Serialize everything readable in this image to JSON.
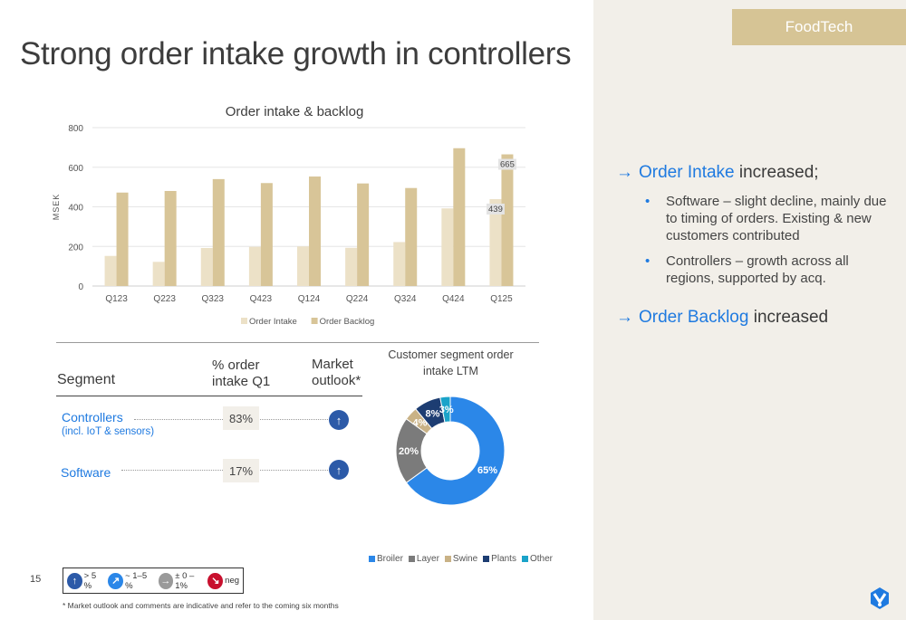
{
  "slide": {
    "tag": "FoodTech",
    "title": "Strong order intake growth in controllers",
    "page_number": "15",
    "footnote": "* Market outlook and comments are indicative and refer to the coming six months"
  },
  "chart_data": [
    {
      "type": "bar",
      "title": "Order intake & backlog",
      "ylabel": "MSEK",
      "xlabel": "",
      "ylim": [
        0,
        800
      ],
      "yticks": [
        0,
        200,
        400,
        600,
        800
      ],
      "categories": [
        "Q123",
        "Q223",
        "Q323",
        "Q423",
        "Q124",
        "Q224",
        "Q324",
        "Q424",
        "Q125"
      ],
      "series": [
        {
          "name": "Order Intake",
          "color": "#ece1c7",
          "values": [
            152,
            122,
            192,
            198,
            200,
            193,
            222,
            392,
            439
          ]
        },
        {
          "name": "Order Backlog",
          "color": "#d8c598",
          "values": [
            472,
            480,
            540,
            520,
            553,
            518,
            495,
            696,
            665
          ]
        }
      ],
      "data_labels": [
        {
          "series": "Order Intake",
          "category": "Q125",
          "text": "439"
        },
        {
          "series": "Order Backlog",
          "category": "Q125",
          "text": "665"
        }
      ],
      "grid": true,
      "legend": "bottom"
    },
    {
      "type": "pie",
      "title": "Customer segment order intake LTM",
      "donut": true,
      "slices": [
        {
          "label": "Broiler",
          "value": 65,
          "text": "65%",
          "color": "#2b87e8"
        },
        {
          "label": "Layer",
          "value": 20,
          "text": "20%",
          "color": "#7b7b7b"
        },
        {
          "label": "Swine",
          "value": 4,
          "text": "4%",
          "color": "#c9b286"
        },
        {
          "label": "Plants",
          "value": 8,
          "text": "8%",
          "color": "#1d3d72"
        },
        {
          "label": "Other",
          "value": 3,
          "text": "3%",
          "color": "#1aa3c9"
        }
      ],
      "legend": "bottom"
    }
  ],
  "segments_table": {
    "header_segment": "Segment",
    "header_pct_line1": "% order",
    "header_pct_line2": "intake Q1",
    "header_outlook_line1": "Market",
    "header_outlook_line2": "outlook*",
    "rows": [
      {
        "name": "Controllers",
        "sub": "(incl. IoT & sensors)",
        "pct": "83%",
        "outlook_icon": "arrow-up-icon",
        "outlook_symbol": "↑"
      },
      {
        "name": "Software",
        "sub": "",
        "pct": "17%",
        "outlook_icon": "arrow-up-icon",
        "outlook_symbol": "↑"
      }
    ]
  },
  "outlook_key": [
    {
      "symbol": "↑",
      "icon": "arrow-up-icon",
      "color": "#2c5aa8",
      "text": "> 5 %"
    },
    {
      "symbol": "↗",
      "icon": "arrow-up-right-icon",
      "color": "#2b87e8",
      "text": "~ 1–5 %"
    },
    {
      "symbol": "→",
      "icon": "arrow-right-icon",
      "color": "#9a9a9a",
      "text": "± 0 –1%"
    },
    {
      "symbol": "↘",
      "icon": "arrow-down-right-icon",
      "color": "#c8102e",
      "text": "neg"
    }
  ],
  "commentary": {
    "arrow": "→",
    "order_intake_highlight": "Order Intake",
    "order_intake_rest": " increased;",
    "bullets": [
      "Software – slight decline, mainly due to timing of orders. Existing & new customers contributed",
      "Controllers – growth across all regions, supported by acq."
    ],
    "order_backlog_highlight": "Order Backlog",
    "order_backlog_rest": " increased"
  }
}
